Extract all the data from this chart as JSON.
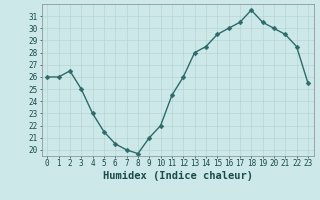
{
  "x": [
    0,
    1,
    2,
    3,
    4,
    5,
    6,
    7,
    8,
    9,
    10,
    11,
    12,
    13,
    14,
    15,
    16,
    17,
    18,
    19,
    20,
    21,
    22,
    23
  ],
  "y": [
    26,
    26,
    26.5,
    25,
    23,
    21.5,
    20.5,
    20,
    19.7,
    21,
    22,
    24.5,
    26,
    28,
    28.5,
    29.5,
    30,
    30.5,
    31.5,
    30.5,
    30,
    29.5,
    28.5,
    25.5
  ],
  "line_color": "#2d6b6b",
  "marker": "D",
  "marker_size": 2.5,
  "bg_color": "#cce8e8",
  "grid_color": "#b8d4d4",
  "xlabel": "Humidex (Indice chaleur)",
  "xlim": [
    -0.5,
    23.5
  ],
  "ylim": [
    19.5,
    32
  ],
  "yticks": [
    20,
    21,
    22,
    23,
    24,
    25,
    26,
    27,
    28,
    29,
    30,
    31
  ],
  "xticks": [
    0,
    1,
    2,
    3,
    4,
    5,
    6,
    7,
    8,
    9,
    10,
    11,
    12,
    13,
    14,
    15,
    16,
    17,
    18,
    19,
    20,
    21,
    22,
    23
  ],
  "tick_label_fontsize": 5.5,
  "xlabel_fontsize": 7.5,
  "line_width": 1.0,
  "text_color": "#1a4a4a"
}
